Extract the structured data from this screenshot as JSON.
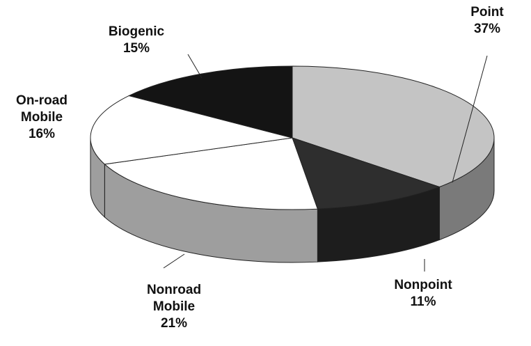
{
  "chart_data": {
    "type": "pie3d",
    "categories": [
      "Point",
      "Nonpoint",
      "Nonroad Mobile",
      "On-road Mobile",
      "Biogenic"
    ],
    "values": [
      37,
      11,
      21,
      16,
      15
    ],
    "value_labels": [
      "37%",
      "11%",
      "21%",
      "16%",
      "15%"
    ],
    "colors": [
      "#c4c4c4",
      "#2e2e2e",
      "#ffffff",
      "#ffffff",
      "#141414"
    ]
  }
}
